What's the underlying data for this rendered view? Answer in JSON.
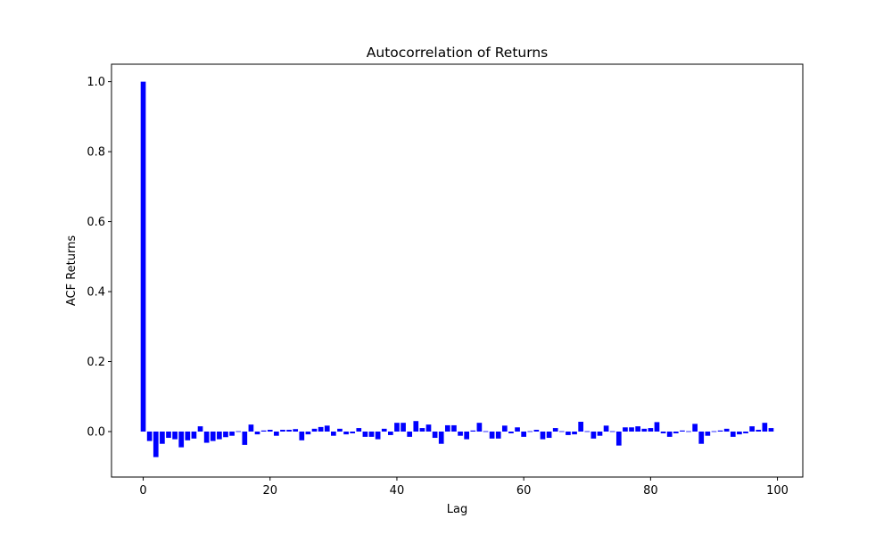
{
  "chart_data": {
    "type": "bar",
    "title": "Autocorrelation of Returns",
    "xlabel": "Lag",
    "ylabel": "ACF Returns",
    "xlim": [
      -5,
      104
    ],
    "ylim": [
      -0.13,
      1.05
    ],
    "xticks": [
      0,
      20,
      40,
      60,
      80,
      100
    ],
    "yticks": [
      0.0,
      0.2,
      0.4,
      0.6,
      0.8,
      1.0
    ],
    "ytick_labels": [
      "0.0",
      "0.2",
      "0.4",
      "0.6",
      "0.8",
      "1.0"
    ],
    "grid": false,
    "legend": null,
    "bar_color": "#0000ff",
    "lags": [
      0,
      1,
      2,
      3,
      4,
      5,
      6,
      7,
      8,
      9,
      10,
      11,
      12,
      13,
      14,
      15,
      16,
      17,
      18,
      19,
      20,
      21,
      22,
      23,
      24,
      25,
      26,
      27,
      28,
      29,
      30,
      31,
      32,
      33,
      34,
      35,
      36,
      37,
      38,
      39,
      40,
      41,
      42,
      43,
      44,
      45,
      46,
      47,
      48,
      49,
      50,
      51,
      52,
      53,
      54,
      55,
      56,
      57,
      58,
      59,
      60,
      61,
      62,
      63,
      64,
      65,
      66,
      67,
      68,
      69,
      70,
      71,
      72,
      73,
      74,
      75,
      76,
      77,
      78,
      79,
      80,
      81,
      82,
      83,
      84,
      85,
      86,
      87,
      88,
      89,
      90,
      91,
      92,
      93,
      94,
      95,
      96,
      97,
      98,
      99
    ],
    "values": [
      1.0,
      -0.027,
      -0.073,
      -0.035,
      -0.018,
      -0.022,
      -0.045,
      -0.025,
      -0.02,
      0.015,
      -0.032,
      -0.027,
      -0.022,
      -0.016,
      -0.012,
      0.0,
      -0.038,
      0.02,
      -0.008,
      0.003,
      0.005,
      -0.012,
      0.005,
      0.005,
      0.007,
      -0.025,
      -0.008,
      0.008,
      0.013,
      0.017,
      -0.012,
      0.008,
      -0.008,
      -0.005,
      0.01,
      -0.015,
      -0.015,
      -0.022,
      0.008,
      -0.01,
      0.025,
      0.025,
      -0.015,
      0.03,
      0.01,
      0.02,
      -0.018,
      -0.035,
      0.018,
      0.018,
      -0.012,
      -0.022,
      0.003,
      0.025,
      0.0,
      -0.02,
      -0.02,
      0.017,
      -0.005,
      0.012,
      -0.015,
      0.002,
      0.005,
      -0.022,
      -0.018,
      0.01,
      -0.002,
      -0.01,
      -0.008,
      0.028,
      -0.002,
      -0.02,
      -0.012,
      0.017,
      -0.002,
      -0.04,
      0.012,
      0.012,
      0.015,
      0.008,
      0.01,
      0.027,
      -0.005,
      -0.015,
      -0.005,
      0.003,
      0.0,
      0.022,
      -0.035,
      -0.012,
      0.002,
      0.003,
      0.008,
      -0.015,
      -0.008,
      -0.005,
      0.015,
      0.005,
      0.025,
      0.01
    ]
  }
}
